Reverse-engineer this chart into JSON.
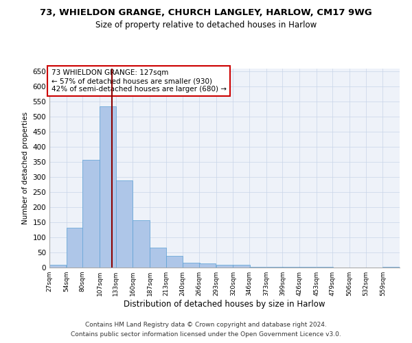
{
  "title": "73, WHIELDON GRANGE, CHURCH LANGLEY, HARLOW, CM17 9WG",
  "subtitle": "Size of property relative to detached houses in Harlow",
  "xlabel": "Distribution of detached houses by size in Harlow",
  "ylabel": "Number of detached properties",
  "bar_color": "#aec6e8",
  "bar_edge_color": "#5a9fd4",
  "vline_x": 127,
  "vline_color": "#8b0000",
  "annotation_line1": "73 WHIELDON GRANGE: 127sqm",
  "annotation_line2": "← 57% of detached houses are smaller (930)",
  "annotation_line3": "42% of semi-detached houses are larger (680) →",
  "annotation_box_color": "#ffffff",
  "annotation_border_color": "#cc0000",
  "bins": [
    27,
    54,
    80,
    107,
    133,
    160,
    187,
    213,
    240,
    266,
    293,
    320,
    346,
    373,
    399,
    426,
    453,
    479,
    506,
    532,
    559
  ],
  "bar_heights": [
    10,
    133,
    358,
    535,
    290,
    157,
    65,
    38,
    17,
    14,
    10,
    8,
    3,
    3,
    2,
    2,
    3,
    1,
    1,
    1,
    3
  ],
  "ylim": [
    0,
    660
  ],
  "yticks": [
    0,
    50,
    100,
    150,
    200,
    250,
    300,
    350,
    400,
    450,
    500,
    550,
    600,
    650
  ],
  "footer_line1": "Contains HM Land Registry data © Crown copyright and database right 2024.",
  "footer_line2": "Contains public sector information licensed under the Open Government Licence v3.0.",
  "bg_color": "#eef2f9"
}
